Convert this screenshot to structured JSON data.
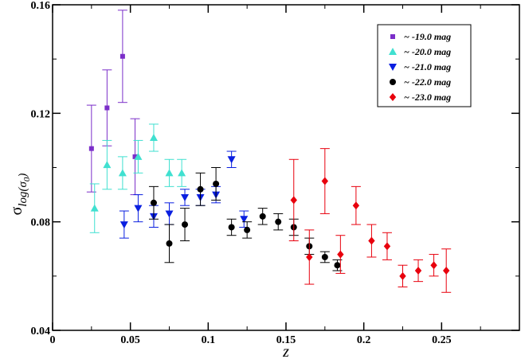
{
  "chart_data": {
    "type": "scatter",
    "xlabel": "z",
    "ylabel_main": "σ",
    "ylabel_sub": "log(σ",
    "ylabel_sub_inner": "0",
    "ylabel_sub_close": ")",
    "xlim": [
      0,
      0.3
    ],
    "ylim": [
      0.04,
      0.16
    ],
    "x_ticks": [
      0,
      0.05,
      0.1,
      0.15,
      0.2,
      0.25
    ],
    "x_tick_labels": [
      "0",
      "0.05",
      "0.1",
      "0.15",
      "0.2",
      "0.25"
    ],
    "y_ticks": [
      0.04,
      0.08,
      0.12,
      0.16
    ],
    "y_tick_labels": [
      "0.04",
      "0.08",
      "0.12",
      "0.16"
    ],
    "grid": false,
    "legend_position": "top-right",
    "series": [
      {
        "name": "~ -19.0 mag",
        "marker": "square",
        "color": "#7b2ec9",
        "points": [
          {
            "x": 0.025,
            "y": 0.107,
            "lo": 0.091,
            "hi": 0.123
          },
          {
            "x": 0.035,
            "y": 0.122,
            "lo": 0.108,
            "hi": 0.136
          },
          {
            "x": 0.045,
            "y": 0.141,
            "lo": 0.124,
            "hi": 0.158
          },
          {
            "x": 0.053,
            "y": 0.104,
            "lo": 0.09,
            "hi": 0.118
          }
        ]
      },
      {
        "name": "~ -20.0 mag",
        "marker": "triangle-up",
        "color": "#40e0d0",
        "points": [
          {
            "x": 0.027,
            "y": 0.085,
            "lo": 0.076,
            "hi": 0.094
          },
          {
            "x": 0.035,
            "y": 0.101,
            "lo": 0.092,
            "hi": 0.11
          },
          {
            "x": 0.045,
            "y": 0.098,
            "lo": 0.092,
            "hi": 0.104
          },
          {
            "x": 0.055,
            "y": 0.104,
            "lo": 0.098,
            "hi": 0.11
          },
          {
            "x": 0.065,
            "y": 0.111,
            "lo": 0.106,
            "hi": 0.116
          },
          {
            "x": 0.075,
            "y": 0.098,
            "lo": 0.093,
            "hi": 0.103
          },
          {
            "x": 0.083,
            "y": 0.098,
            "lo": 0.093,
            "hi": 0.103
          }
        ]
      },
      {
        "name": "~ -21.0 mag",
        "marker": "triangle-down",
        "color": "#0a1fe0",
        "points": [
          {
            "x": 0.046,
            "y": 0.079,
            "lo": 0.074,
            "hi": 0.084
          },
          {
            "x": 0.055,
            "y": 0.085,
            "lo": 0.08,
            "hi": 0.09
          },
          {
            "x": 0.065,
            "y": 0.082,
            "lo": 0.078,
            "hi": 0.086
          },
          {
            "x": 0.075,
            "y": 0.083,
            "lo": 0.079,
            "hi": 0.087
          },
          {
            "x": 0.085,
            "y": 0.089,
            "lo": 0.086,
            "hi": 0.092
          },
          {
            "x": 0.095,
            "y": 0.089,
            "lo": 0.086,
            "hi": 0.092
          },
          {
            "x": 0.105,
            "y": 0.09,
            "lo": 0.087,
            "hi": 0.093
          },
          {
            "x": 0.115,
            "y": 0.103,
            "lo": 0.1,
            "hi": 0.106
          },
          {
            "x": 0.123,
            "y": 0.081,
            "lo": 0.078,
            "hi": 0.084
          }
        ]
      },
      {
        "name": "~ -22.0 mag",
        "marker": "circle",
        "color": "#000000",
        "points": [
          {
            "x": 0.065,
            "y": 0.087,
            "lo": 0.081,
            "hi": 0.093
          },
          {
            "x": 0.075,
            "y": 0.072,
            "lo": 0.065,
            "hi": 0.079
          },
          {
            "x": 0.085,
            "y": 0.079,
            "lo": 0.073,
            "hi": 0.085
          },
          {
            "x": 0.095,
            "y": 0.092,
            "lo": 0.086,
            "hi": 0.098
          },
          {
            "x": 0.105,
            "y": 0.094,
            "lo": 0.088,
            "hi": 0.1
          },
          {
            "x": 0.115,
            "y": 0.078,
            "lo": 0.075,
            "hi": 0.081
          },
          {
            "x": 0.125,
            "y": 0.077,
            "lo": 0.074,
            "hi": 0.08
          },
          {
            "x": 0.135,
            "y": 0.082,
            "lo": 0.079,
            "hi": 0.085
          },
          {
            "x": 0.145,
            "y": 0.08,
            "lo": 0.077,
            "hi": 0.083
          },
          {
            "x": 0.155,
            "y": 0.078,
            "lo": 0.075,
            "hi": 0.081
          },
          {
            "x": 0.165,
            "y": 0.071,
            "lo": 0.068,
            "hi": 0.074
          },
          {
            "x": 0.175,
            "y": 0.067,
            "lo": 0.065,
            "hi": 0.069
          },
          {
            "x": 0.183,
            "y": 0.064,
            "lo": 0.062,
            "hi": 0.066
          }
        ]
      },
      {
        "name": "~ -23.0 mag",
        "marker": "diamond",
        "color": "#e8000d",
        "points": [
          {
            "x": 0.155,
            "y": 0.088,
            "lo": 0.073,
            "hi": 0.103
          },
          {
            "x": 0.165,
            "y": 0.067,
            "lo": 0.057,
            "hi": 0.077
          },
          {
            "x": 0.175,
            "y": 0.095,
            "lo": 0.083,
            "hi": 0.107
          },
          {
            "x": 0.185,
            "y": 0.068,
            "lo": 0.061,
            "hi": 0.075
          },
          {
            "x": 0.195,
            "y": 0.086,
            "lo": 0.079,
            "hi": 0.093
          },
          {
            "x": 0.205,
            "y": 0.073,
            "lo": 0.067,
            "hi": 0.079
          },
          {
            "x": 0.215,
            "y": 0.071,
            "lo": 0.066,
            "hi": 0.076
          },
          {
            "x": 0.225,
            "y": 0.06,
            "lo": 0.056,
            "hi": 0.064
          },
          {
            "x": 0.235,
            "y": 0.062,
            "lo": 0.058,
            "hi": 0.066
          },
          {
            "x": 0.245,
            "y": 0.064,
            "lo": 0.06,
            "hi": 0.068
          },
          {
            "x": 0.253,
            "y": 0.062,
            "lo": 0.054,
            "hi": 0.07
          }
        ]
      }
    ]
  }
}
